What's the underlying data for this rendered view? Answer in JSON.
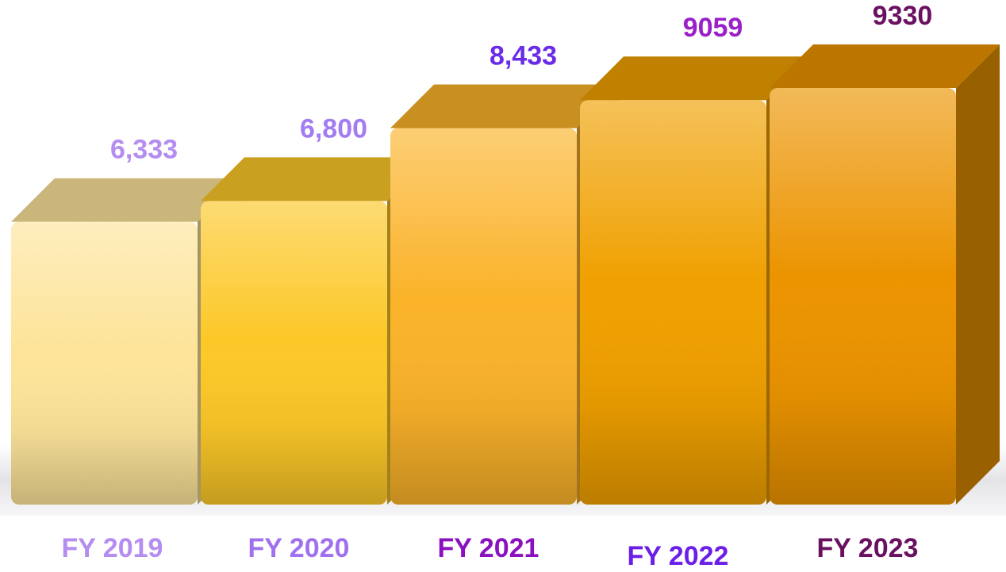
{
  "chart_data": {
    "type": "bar3d",
    "categories": [
      "FY 2019",
      "FY 2020",
      "FY 2021",
      "FY 2022",
      "FY 2023"
    ],
    "values": [
      6333,
      6800,
      8433,
      9059,
      9330
    ],
    "value_labels": [
      "6,333",
      "6,800",
      "8,433",
      "9059",
      "9330"
    ],
    "colors": [
      "#fde49a",
      "#fcc828",
      "#fbb32a",
      "#f0a000",
      "#ec9400"
    ],
    "value_label_colors": [
      "#b58cf0",
      "#a27cf0",
      "#6a2ce8",
      "#9a20c8",
      "#6a1060"
    ],
    "category_label_colors": [
      "#b58cf0",
      "#a070ee",
      "#8a10c0",
      "#6a1ee8",
      "#6a1060"
    ]
  }
}
